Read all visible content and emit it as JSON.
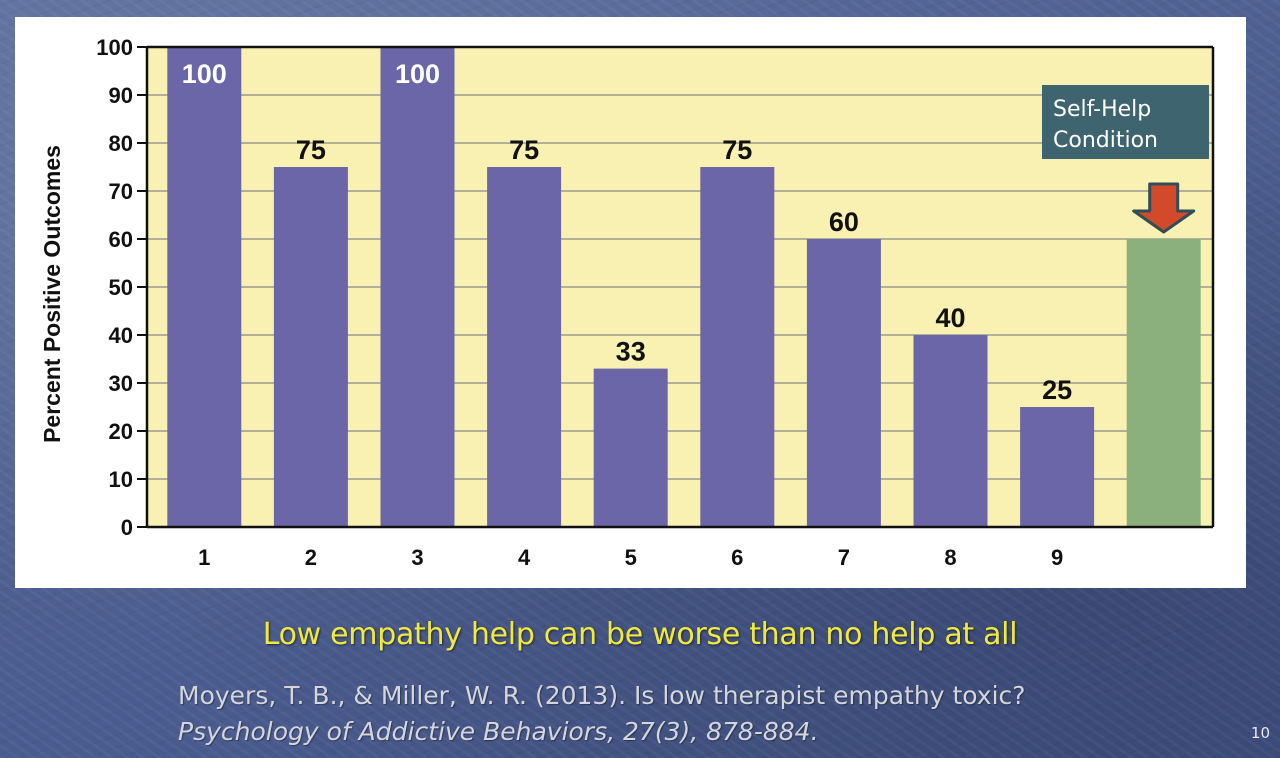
{
  "chart_data": {
    "type": "bar",
    "title": "",
    "xlabel": "",
    "ylabel": "Percent Positive Outcomes",
    "ylim": [
      0,
      100
    ],
    "yticks": [
      0,
      10,
      20,
      30,
      40,
      50,
      60,
      70,
      80,
      90,
      100
    ],
    "grid": true,
    "categories": [
      "1",
      "2",
      "3",
      "4",
      "5",
      "6",
      "7",
      "8",
      "9",
      ""
    ],
    "values": [
      100,
      75,
      100,
      75,
      33,
      75,
      60,
      40,
      25,
      60
    ],
    "data_labels": [
      "100",
      "75",
      "100",
      "75",
      "33",
      "75",
      "60",
      "40",
      "25",
      ""
    ],
    "bar_colors": [
      "#6b66a8",
      "#6b66a8",
      "#6b66a8",
      "#6b66a8",
      "#6b66a8",
      "#6b66a8",
      "#6b66a8",
      "#6b66a8",
      "#6b66a8",
      "#8cb07d"
    ],
    "plot_background": "#f9f1b2",
    "callout": {
      "lines": [
        "Self-Help",
        "Condition"
      ],
      "target_bar": 9,
      "box_color": "#3e6470",
      "arrow_color": "#d34a2a"
    }
  },
  "caption": "Low empathy help can be worse than no help at all",
  "citation": {
    "line1": "Moyers, T. B., & Miller, W. R. (2013). Is low therapist empathy toxic?",
    "line2": "Psychology of Addictive Behaviors, 27(3), 878-884."
  },
  "slide_number": "10",
  "colors": {
    "caption": "#f2ea3a",
    "citation": "#d4d6dc",
    "panel": "#ffffff"
  }
}
